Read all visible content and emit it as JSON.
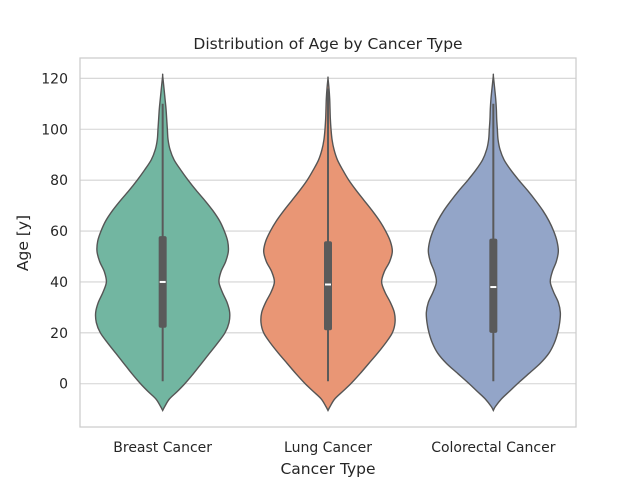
{
  "chart_data": {
    "type": "violin",
    "title": "Distribution of Age by Cancer Type",
    "xlabel": "Cancer Type",
    "ylabel": "Age [y]",
    "ylim": [
      -17,
      128
    ],
    "yticks": [
      0,
      20,
      40,
      60,
      80,
      100,
      120
    ],
    "grid": "horizontal",
    "categories": [
      "Breast Cancer",
      "Lung Cancer",
      "Colorectal Cancer"
    ],
    "series": [
      {
        "category": "Breast Cancer",
        "color": "#72b6a1",
        "min": 1,
        "q1": 22,
        "median": 40,
        "q3": 58,
        "max": 110,
        "kde_range": [
          -10.5,
          121
        ],
        "density": [
          [
            -10.5,
            0.0
          ],
          [
            -9,
            0.03
          ],
          [
            -6,
            0.1
          ],
          [
            -3,
            0.22
          ],
          [
            0,
            0.33
          ],
          [
            4,
            0.46
          ],
          [
            8,
            0.58
          ],
          [
            12,
            0.7
          ],
          [
            16,
            0.82
          ],
          [
            20,
            0.93
          ],
          [
            24,
            0.99
          ],
          [
            28,
            1.0
          ],
          [
            32,
            0.96
          ],
          [
            36,
            0.89
          ],
          [
            40,
            0.84
          ],
          [
            44,
            0.87
          ],
          [
            48,
            0.94
          ],
          [
            52,
            0.98
          ],
          [
            56,
            0.97
          ],
          [
            60,
            0.92
          ],
          [
            64,
            0.85
          ],
          [
            68,
            0.75
          ],
          [
            72,
            0.63
          ],
          [
            76,
            0.5
          ],
          [
            80,
            0.38
          ],
          [
            84,
            0.27
          ],
          [
            88,
            0.17
          ],
          [
            92,
            0.11
          ],
          [
            96,
            0.08
          ],
          [
            100,
            0.07
          ],
          [
            104,
            0.06
          ],
          [
            108,
            0.05
          ],
          [
            112,
            0.035
          ],
          [
            116,
            0.02
          ],
          [
            121,
            0.0
          ]
        ]
      },
      {
        "category": "Lung Cancer",
        "color": "#e99675",
        "min": 1,
        "q1": 21,
        "median": 39,
        "q3": 56,
        "max": 116,
        "kde_range": [
          -10.5,
          120
        ],
        "density": [
          [
            -10.5,
            0.0
          ],
          [
            -9,
            0.03
          ],
          [
            -6,
            0.1
          ],
          [
            -3,
            0.22
          ],
          [
            0,
            0.34
          ],
          [
            4,
            0.48
          ],
          [
            8,
            0.61
          ],
          [
            12,
            0.74
          ],
          [
            16,
            0.86
          ],
          [
            20,
            0.96
          ],
          [
            24,
            1.0
          ],
          [
            28,
            0.99
          ],
          [
            32,
            0.93
          ],
          [
            36,
            0.85
          ],
          [
            40,
            0.8
          ],
          [
            44,
            0.84
          ],
          [
            48,
            0.92
          ],
          [
            52,
            0.96
          ],
          [
            56,
            0.93
          ],
          [
            60,
            0.86
          ],
          [
            64,
            0.77
          ],
          [
            68,
            0.66
          ],
          [
            72,
            0.54
          ],
          [
            76,
            0.42
          ],
          [
            80,
            0.31
          ],
          [
            84,
            0.22
          ],
          [
            88,
            0.14
          ],
          [
            92,
            0.09
          ],
          [
            96,
            0.06
          ],
          [
            100,
            0.045
          ],
          [
            104,
            0.035
          ],
          [
            108,
            0.03
          ],
          [
            112,
            0.025
          ],
          [
            116,
            0.015
          ],
          [
            120,
            0.0
          ]
        ]
      },
      {
        "category": "Colorectal Cancer",
        "color": "#93a5c8",
        "min": 1,
        "q1": 20,
        "median": 38,
        "q3": 57,
        "max": 110,
        "kde_range": [
          -10.5,
          121
        ],
        "density": [
          [
            -10.5,
            0.0
          ],
          [
            -9,
            0.03
          ],
          [
            -6,
            0.12
          ],
          [
            -3,
            0.24
          ],
          [
            0,
            0.36
          ],
          [
            4,
            0.53
          ],
          [
            8,
            0.7
          ],
          [
            12,
            0.83
          ],
          [
            16,
            0.91
          ],
          [
            20,
            0.96
          ],
          [
            24,
            0.99
          ],
          [
            28,
            1.0
          ],
          [
            32,
            0.97
          ],
          [
            36,
            0.9
          ],
          [
            40,
            0.85
          ],
          [
            44,
            0.88
          ],
          [
            48,
            0.94
          ],
          [
            52,
            0.97
          ],
          [
            56,
            0.95
          ],
          [
            60,
            0.9
          ],
          [
            64,
            0.83
          ],
          [
            68,
            0.74
          ],
          [
            72,
            0.63
          ],
          [
            76,
            0.51
          ],
          [
            80,
            0.38
          ],
          [
            84,
            0.26
          ],
          [
            88,
            0.16
          ],
          [
            92,
            0.1
          ],
          [
            96,
            0.07
          ],
          [
            100,
            0.06
          ],
          [
            104,
            0.05
          ],
          [
            108,
            0.045
          ],
          [
            112,
            0.035
          ],
          [
            116,
            0.02
          ],
          [
            121,
            0.0
          ]
        ]
      }
    ]
  }
}
